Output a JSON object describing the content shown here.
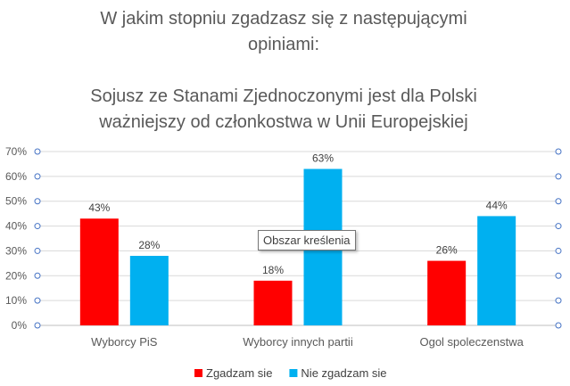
{
  "title_lines": [
    "W jakim stopniu zgadzasz się z następującymi",
    "opiniami:",
    "Sojusz ze Stanami Zjednoczonymi jest dla Polski",
    "ważniejszy od członkostwa w Unii Europejskiej"
  ],
  "tooltip": "Obszar kreślenia",
  "chart_data": {
    "type": "bar",
    "categories": [
      "Wyborcy PiS",
      "Wyborcy innych partii",
      "Ogol spoleczenstwa"
    ],
    "series": [
      {
        "name": "Zgadzam sie",
        "color": "#ff0000",
        "values": [
          43,
          18,
          26
        ],
        "labels": [
          "43%",
          "18%",
          "26%"
        ]
      },
      {
        "name": "Nie zgadzam sie",
        "color": "#00b0f0",
        "values": [
          28,
          63,
          44
        ],
        "labels": [
          "28%",
          "63%",
          "44%"
        ]
      }
    ],
    "ylim": [
      0,
      70
    ],
    "yticks": [
      "0%",
      "10%",
      "20%",
      "30%",
      "40%",
      "50%",
      "60%",
      "70%"
    ],
    "grid": true,
    "legend": "bottom"
  }
}
